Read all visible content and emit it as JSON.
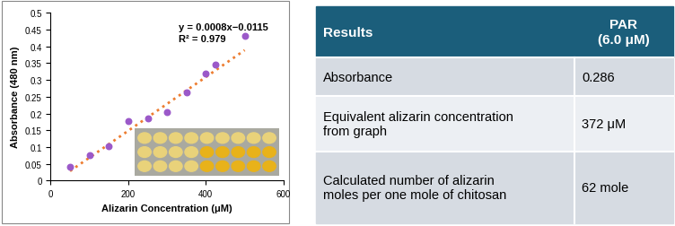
{
  "chart_data": {
    "type": "scatter",
    "x_label": "Alizarin Concentration (μM)",
    "y_label": "Absorbance (480 nm)",
    "x": [
      50,
      100,
      150,
      200,
      250,
      300,
      350,
      400,
      425,
      500
    ],
    "values": [
      0.042,
      0.075,
      0.103,
      0.177,
      0.185,
      0.205,
      0.263,
      0.32,
      0.345,
      0.43
    ],
    "color": "#9b59c9",
    "marker": "circle",
    "trendline": {
      "slope": 0.0008,
      "intercept": -0.0115,
      "x_range": [
        50,
        500
      ],
      "color": "#ed7d31",
      "line_style": "dotted",
      "equation": "y = 0.0008x−0.0115",
      "r2": "R² = 0.979"
    },
    "xlim": [
      0,
      600
    ],
    "xticks": [
      0,
      200,
      400,
      600
    ],
    "ylim": [
      0,
      0.5
    ],
    "yticks": [
      0,
      0.05,
      0.1,
      0.15,
      0.2,
      0.25,
      0.3,
      0.35,
      0.4,
      0.45,
      0.5
    ],
    "grid": false
  },
  "table": {
    "header": [
      "Results",
      "PAR\n(6.0 μM)"
    ],
    "rows": [
      [
        "Absorbance",
        "0.286"
      ],
      [
        "Equivalent alizarin concentration from graph",
        "372 μM"
      ],
      [
        "Calculated number of alizarin moles per one mole of chitosan",
        "62 mole"
      ]
    ]
  }
}
